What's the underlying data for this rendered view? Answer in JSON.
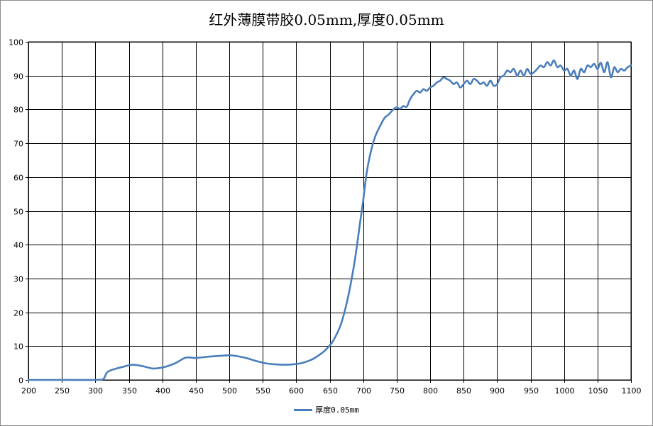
{
  "chart_data": {
    "type": "line",
    "title": "红外薄膜带胶0.05mm,厚度0.05mm",
    "xlabel": "",
    "ylabel": "",
    "xlim": [
      200,
      1100
    ],
    "ylim": [
      0,
      100
    ],
    "x_ticks": [
      200,
      250,
      300,
      350,
      400,
      450,
      500,
      550,
      600,
      650,
      700,
      750,
      800,
      850,
      900,
      950,
      1000,
      1050,
      1100
    ],
    "y_ticks": [
      0,
      10,
      20,
      30,
      40,
      50,
      60,
      70,
      80,
      90,
      100
    ],
    "grid": true,
    "legend_position": "bottom",
    "series": [
      {
        "name": "厚度0.05mm",
        "color": "#4a7ebb",
        "x": [
          200,
          250,
          300,
          312,
          316,
          320,
          330,
          340,
          355,
          370,
          385,
          395,
          405,
          420,
          435,
          450,
          470,
          485,
          500,
          510,
          525,
          540,
          555,
          570,
          585,
          600,
          612,
          625,
          640,
          650,
          655,
          665,
          672,
          680,
          688,
          695,
          700,
          705,
          712,
          718,
          725,
          732,
          738,
          745,
          750,
          755,
          760,
          765,
          770,
          775,
          780,
          785,
          790,
          795,
          800,
          805,
          810,
          815,
          820,
          825,
          830,
          835,
          840,
          845,
          850,
          855,
          860,
          865,
          870,
          875,
          880,
          885,
          890,
          895,
          900,
          905,
          910,
          915,
          920,
          925,
          930,
          935,
          940,
          945,
          950,
          955,
          960,
          965,
          970,
          975,
          980,
          985,
          990,
          995,
          1000,
          1005,
          1010,
          1015,
          1020,
          1025,
          1030,
          1035,
          1040,
          1045,
          1050,
          1055,
          1060,
          1065,
          1070,
          1075,
          1080,
          1085,
          1090,
          1095,
          1100
        ],
        "y": [
          0,
          0,
          0,
          0.3,
          1.8,
          2.6,
          3.3,
          3.8,
          4.5,
          4.1,
          3.4,
          3.5,
          3.9,
          5.0,
          6.6,
          6.5,
          6.9,
          7.1,
          7.3,
          7.1,
          6.5,
          5.6,
          4.9,
          4.6,
          4.5,
          4.7,
          5.2,
          6.2,
          8.2,
          10.2,
          11.5,
          15.5,
          20,
          27,
          36,
          46,
          53,
          61,
          68,
          72,
          75,
          77.5,
          78.5,
          80,
          80.6,
          80.2,
          81,
          80.8,
          83,
          84.5,
          85.5,
          85,
          86,
          85.5,
          86.5,
          87,
          88,
          88.5,
          89.5,
          89,
          88.5,
          87.5,
          88,
          86.5,
          87.5,
          88.5,
          87.5,
          89,
          88.5,
          87.5,
          88,
          87,
          88.5,
          87,
          87.5,
          89.5,
          90,
          91.5,
          91,
          92,
          90,
          91.5,
          90,
          92,
          90.5,
          91,
          92,
          93,
          92.5,
          94,
          93,
          94.5,
          92.5,
          93,
          91.5,
          92,
          90,
          91.5,
          89,
          92,
          91,
          93,
          92.5,
          93.5,
          92,
          93.8,
          91,
          94,
          89.5,
          92.5,
          91,
          92,
          91.5,
          92.5,
          93
        ]
      }
    ]
  }
}
